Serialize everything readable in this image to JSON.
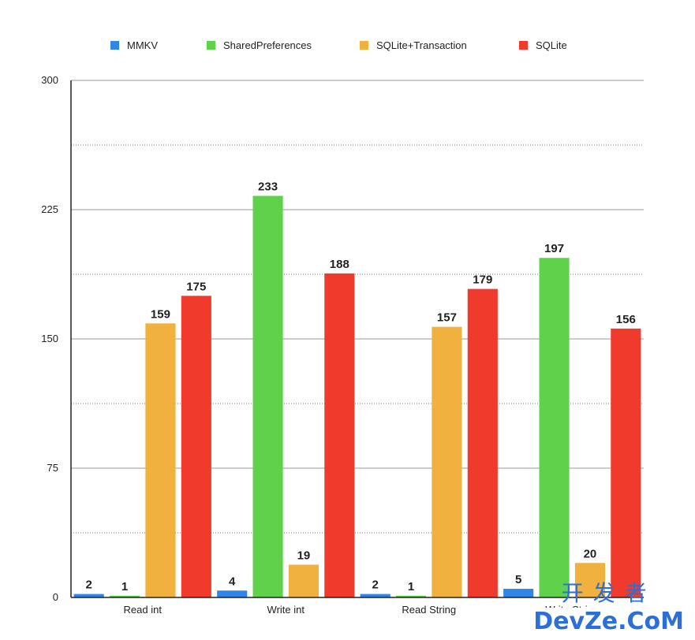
{
  "chart_data": {
    "type": "bar",
    "categories": [
      "Read int",
      "Write int",
      "Read String",
      "Write String"
    ],
    "series": [
      {
        "name": "MMKV",
        "color": "#2f86e6",
        "values": [
          2,
          4,
          2,
          5
        ]
      },
      {
        "name": "SharedPreferences",
        "color": "#5fd14b",
        "values": [
          1,
          233,
          1,
          197
        ]
      },
      {
        "name": "SQLite+Transaction",
        "color": "#f0b13e",
        "values": [
          159,
          19,
          157,
          20
        ]
      },
      {
        "name": "SQLite",
        "color": "#ef3a2c",
        "values": [
          175,
          188,
          179,
          156
        ]
      }
    ],
    "ylim": [
      0,
      300
    ],
    "yticks": [
      0,
      75,
      150,
      225,
      300
    ],
    "grid": true,
    "legend": "top",
    "title": "",
    "xlabel": "",
    "ylabel": ""
  },
  "watermark": {
    "cn": "开发者",
    "en": "DevZe.CoM"
  }
}
